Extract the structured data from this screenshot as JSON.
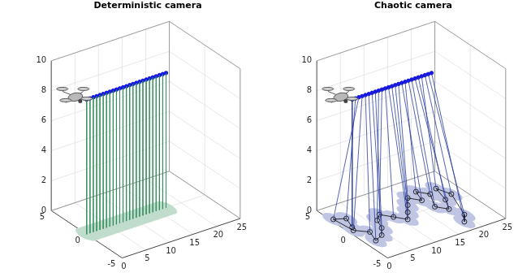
{
  "chart_data": [
    {
      "type": "scatter",
      "title": "Deterministic camera",
      "xlim": [
        0,
        25
      ],
      "ylim": [
        -5,
        5
      ],
      "zlim": [
        0,
        10
      ],
      "xticks": [
        0,
        5,
        10,
        15,
        20,
        25
      ],
      "yticks": [
        -5,
        0,
        5
      ],
      "zticks": [
        0,
        2,
        4,
        6,
        8,
        10
      ],
      "grid": true,
      "series": [
        {
          "type": "scatter",
          "marker": "circle",
          "line_style": "solid",
          "color": "#1414e6",
          "x": [
            0,
            0.7,
            1.4,
            2.1,
            2.8,
            3.5,
            4.2,
            4.9,
            5.6,
            6.3,
            7,
            7.7,
            8.4,
            9.1,
            9.8,
            10.5,
            11.2,
            11.9,
            12.6,
            13.3,
            14,
            14.7,
            15.4,
            16.1,
            16.8
          ],
          "y": [
            0,
            0,
            0,
            0,
            0,
            0,
            0,
            0,
            0,
            0,
            0,
            0,
            0,
            0,
            0,
            0,
            0,
            0,
            0,
            0,
            0,
            0,
            0,
            0,
            0
          ],
          "z": [
            9,
            9,
            9,
            9,
            9,
            9,
            9,
            9,
            9,
            9,
            9,
            9,
            9,
            9,
            9,
            9,
            9,
            9,
            9,
            9,
            9,
            9,
            9,
            9,
            9
          ]
        },
        {
          "type": "scatter",
          "marker": "none",
          "line_style": "none",
          "color": "#2e8b57",
          "x": [
            0,
            0.7,
            1.4,
            2.1,
            2.8,
            3.5,
            4.2,
            4.9,
            5.6,
            6.3,
            7,
            7.7,
            8.4,
            9.1,
            9.8,
            10.5,
            11.2,
            11.9,
            12.6,
            13.3,
            14,
            14.7,
            15.4,
            16.1,
            16.8
          ],
          "y": [
            0,
            0,
            0,
            0,
            0,
            0,
            0,
            0,
            0,
            0,
            0,
            0,
            0,
            0,
            0,
            0,
            0,
            0,
            0,
            0,
            0,
            0,
            0,
            0,
            0
          ],
          "z": [
            0,
            0,
            0,
            0,
            0,
            0,
            0,
            0,
            0,
            0,
            0,
            0,
            0,
            0,
            0,
            0,
            0,
            0,
            0,
            0,
            0,
            0,
            0,
            0,
            0
          ]
        }
      ]
    },
    {
      "type": "scatter",
      "title": "Chaotic camera",
      "xlim": [
        0,
        25
      ],
      "ylim": [
        -5,
        5
      ],
      "zlim": [
        0,
        10
      ],
      "xticks": [
        0,
        5,
        10,
        15,
        20,
        25
      ],
      "yticks": [
        -5,
        0,
        5
      ],
      "zticks": [
        0,
        2,
        4,
        6,
        8,
        10
      ],
      "grid": true,
      "series": [
        {
          "type": "scatter",
          "marker": "circle",
          "line_style": "solid",
          "color": "#1414e6",
          "x": [
            0,
            0.7,
            1.4,
            2.1,
            2.8,
            3.5,
            4.2,
            4.9,
            5.6,
            6.3,
            7,
            7.7,
            8.4,
            9.1,
            9.8,
            10.5,
            11.2,
            11.9,
            12.6,
            13.3,
            14,
            14.7,
            15.4,
            16.1,
            16.8
          ],
          "y": [
            0,
            0,
            0,
            0,
            0,
            0,
            0,
            0,
            0,
            0,
            0,
            0,
            0,
            0,
            0,
            0,
            0,
            0,
            0,
            0,
            0,
            0,
            0,
            0,
            0
          ],
          "z": [
            9,
            9,
            9,
            9,
            9,
            9,
            9,
            9,
            9,
            9,
            9,
            9,
            9,
            9,
            9,
            9,
            9,
            9,
            9,
            9,
            9,
            9,
            9,
            9,
            9
          ]
        },
        {
          "type": "scatter",
          "marker": "circle",
          "line_style": "solid",
          "color": "#2b3f9e",
          "x": [
            1.5,
            2.5,
            0.5,
            1,
            3,
            2,
            4,
            5.5,
            6.5,
            8,
            9.5,
            11,
            12.5,
            14,
            15.5,
            17,
            18,
            19.5,
            17.5,
            19,
            20.5,
            21.5,
            22.5,
            20,
            18.5
          ],
          "y": [
            1,
            2.5,
            3,
            0.5,
            -0.5,
            -2,
            -1.5,
            -0.5,
            0.8,
            1.5,
            0.5,
            -0.5,
            0.5,
            1.5,
            2.5,
            1.5,
            3,
            2,
            0,
            -1,
            0.5,
            2.5,
            1,
            -2.5,
            -3.5
          ],
          "z": [
            0,
            0,
            0,
            0,
            0,
            0,
            0,
            0,
            0,
            0,
            0,
            0,
            0,
            0,
            0,
            0,
            0,
            0,
            0,
            0,
            0,
            0,
            0,
            0,
            0
          ]
        }
      ]
    }
  ]
}
